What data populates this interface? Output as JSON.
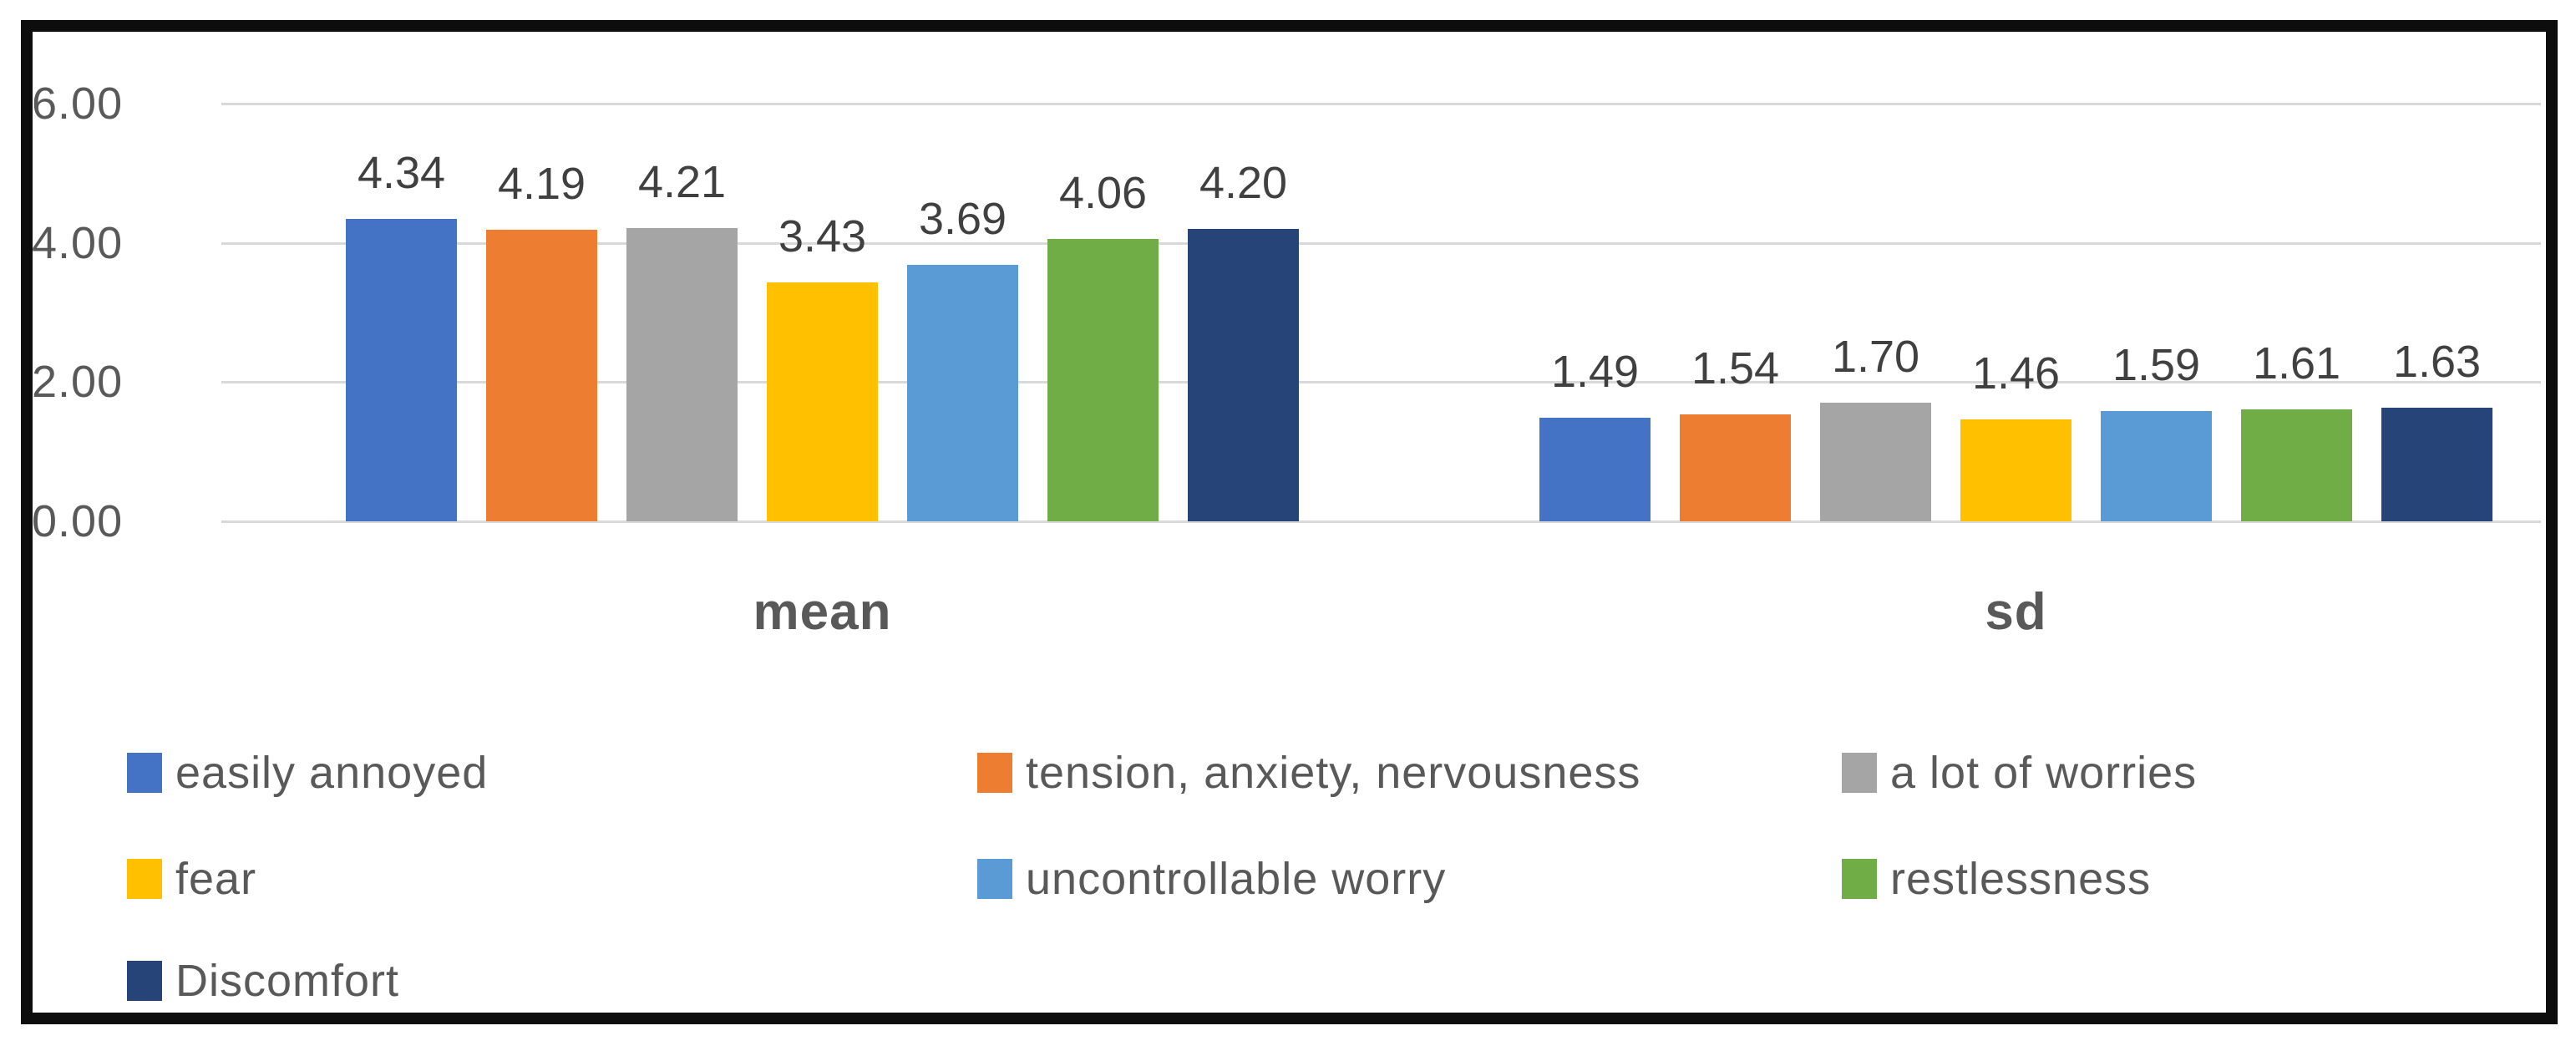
{
  "chart_data": {
    "type": "bar",
    "title": "",
    "groups": [
      {
        "key": "mean",
        "label": "mean"
      },
      {
        "key": "sd",
        "label": "sd"
      }
    ],
    "series": [
      {
        "name": "easily annoyed",
        "color": "#4472C4",
        "values": {
          "mean": 4.34,
          "sd": 1.49
        },
        "labels": {
          "mean": "4.34",
          "sd": "1.49"
        }
      },
      {
        "name": "tension, anxiety, nervousness",
        "color": "#ED7D31",
        "values": {
          "mean": 4.19,
          "sd": 1.54
        },
        "labels": {
          "mean": "4.19",
          "sd": "1.54"
        }
      },
      {
        "name": "a lot of worries",
        "color": "#A5A5A5",
        "values": {
          "mean": 4.21,
          "sd": 1.7
        },
        "labels": {
          "mean": "4.21",
          "sd": "1.70"
        }
      },
      {
        "name": "fear",
        "color": "#FFC000",
        "values": {
          "mean": 3.43,
          "sd": 1.46
        },
        "labels": {
          "mean": "3.43",
          "sd": "1.46"
        }
      },
      {
        "name": "uncontrollable worry",
        "color": "#5B9BD5",
        "values": {
          "mean": 3.69,
          "sd": 1.59
        },
        "labels": {
          "mean": "3.69",
          "sd": "1.59"
        }
      },
      {
        "name": "restlessness",
        "color": "#70AD47",
        "values": {
          "mean": 4.06,
          "sd": 1.61
        },
        "labels": {
          "mean": "4.06",
          "sd": "1.61"
        }
      },
      {
        "name": "Discomfort",
        "color": "#264478",
        "values": {
          "mean": 4.2,
          "sd": 1.63
        },
        "labels": {
          "mean": "4.20",
          "sd": "1.63"
        }
      }
    ],
    "y_axis": {
      "ticks": [
        {
          "value": 6,
          "label": "6.00"
        },
        {
          "value": 4,
          "label": "4.00"
        },
        {
          "value": 2,
          "label": "2.00"
        },
        {
          "value": 0,
          "label": "0.00"
        }
      ],
      "ylim": [
        0,
        6
      ]
    },
    "grid": true,
    "value_labels": "outside-end",
    "legend_position": "bottom"
  },
  "colors": {
    "grid_line": "#D9D9D9",
    "axis_text": "#595959",
    "data_label_text": "#404040",
    "legend_text": "#595959",
    "frame_border": "#000000",
    "background": "#FFFFFF"
  }
}
